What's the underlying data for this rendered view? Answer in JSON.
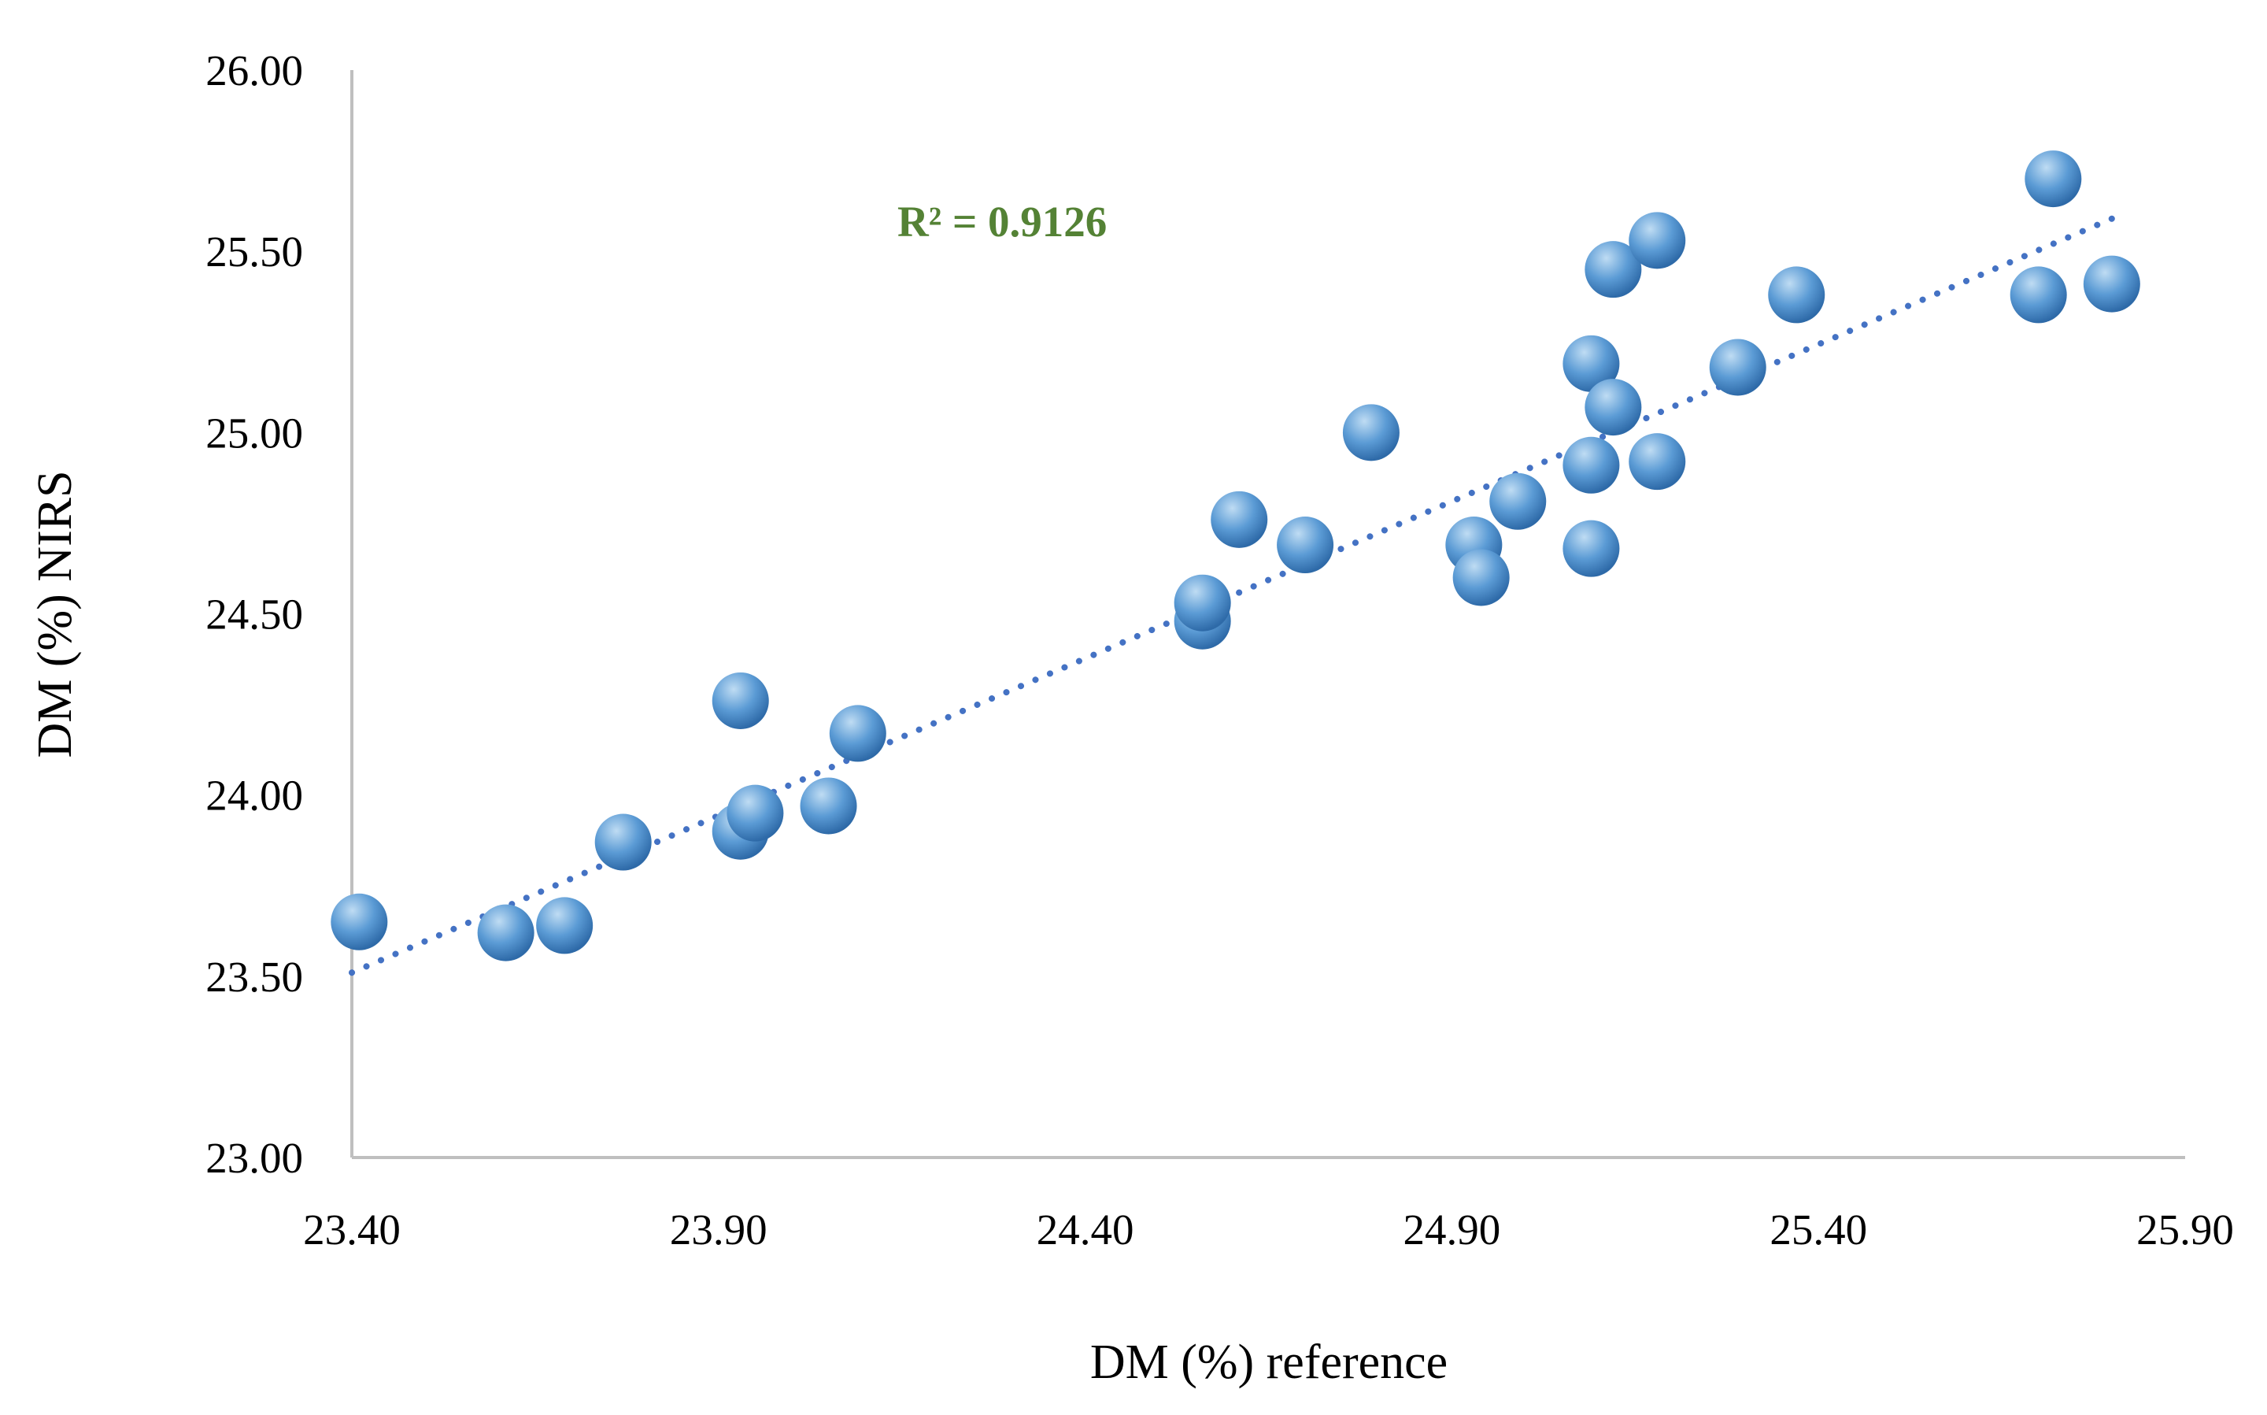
{
  "chart_data": {
    "type": "scatter",
    "title": "",
    "xlabel": "DM (%) reference",
    "ylabel": "DM (%) NIRS",
    "xlim": [
      23.4,
      25.9
    ],
    "ylim": [
      23.0,
      26.0
    ],
    "x_ticks": [
      "23.40",
      "23.90",
      "24.40",
      "24.90",
      "25.40",
      "25.90"
    ],
    "y_ticks": [
      "23.00",
      "23.50",
      "24.00",
      "24.50",
      "25.00",
      "25.50",
      "26.00"
    ],
    "grid": false,
    "legend": "none",
    "series": [
      {
        "points": [
          {
            "x": 23.41,
            "y": 23.65
          },
          {
            "x": 23.61,
            "y": 23.62
          },
          {
            "x": 23.69,
            "y": 23.64
          },
          {
            "x": 23.77,
            "y": 23.87
          },
          {
            "x": 23.93,
            "y": 24.26
          },
          {
            "x": 23.93,
            "y": 23.9
          },
          {
            "x": 23.95,
            "y": 23.95
          },
          {
            "x": 24.05,
            "y": 23.97
          },
          {
            "x": 24.09,
            "y": 24.17
          },
          {
            "x": 24.56,
            "y": 24.48
          },
          {
            "x": 24.56,
            "y": 24.53
          },
          {
            "x": 24.61,
            "y": 24.76
          },
          {
            "x": 24.7,
            "y": 24.69
          },
          {
            "x": 24.79,
            "y": 25.0
          },
          {
            "x": 24.93,
            "y": 24.69
          },
          {
            "x": 24.94,
            "y": 24.6
          },
          {
            "x": 24.99,
            "y": 24.81
          },
          {
            "x": 25.09,
            "y": 25.19
          },
          {
            "x": 25.09,
            "y": 24.91
          },
          {
            "x": 25.09,
            "y": 24.68
          },
          {
            "x": 25.12,
            "y": 25.07
          },
          {
            "x": 25.12,
            "y": 25.45
          },
          {
            "x": 25.18,
            "y": 25.53
          },
          {
            "x": 25.18,
            "y": 24.92
          },
          {
            "x": 25.29,
            "y": 25.18
          },
          {
            "x": 25.37,
            "y": 25.38
          },
          {
            "x": 25.7,
            "y": 25.38
          },
          {
            "x": 25.72,
            "y": 25.7
          },
          {
            "x": 25.8,
            "y": 25.41
          }
        ]
      }
    ],
    "trendline": {
      "type": "linear",
      "x_range": [
        23.4,
        25.8
      ],
      "y_start": 23.51,
      "y_end": 25.59,
      "label": "R² = 0.9126"
    },
    "colors": {
      "marker": "#5b9bd5",
      "marker_light": "#bfdcf3",
      "marker_dark": "#2e6aa8",
      "trendline": "#4472c4",
      "axis": "#bfbfbf",
      "r2_label": "#548235"
    }
  }
}
